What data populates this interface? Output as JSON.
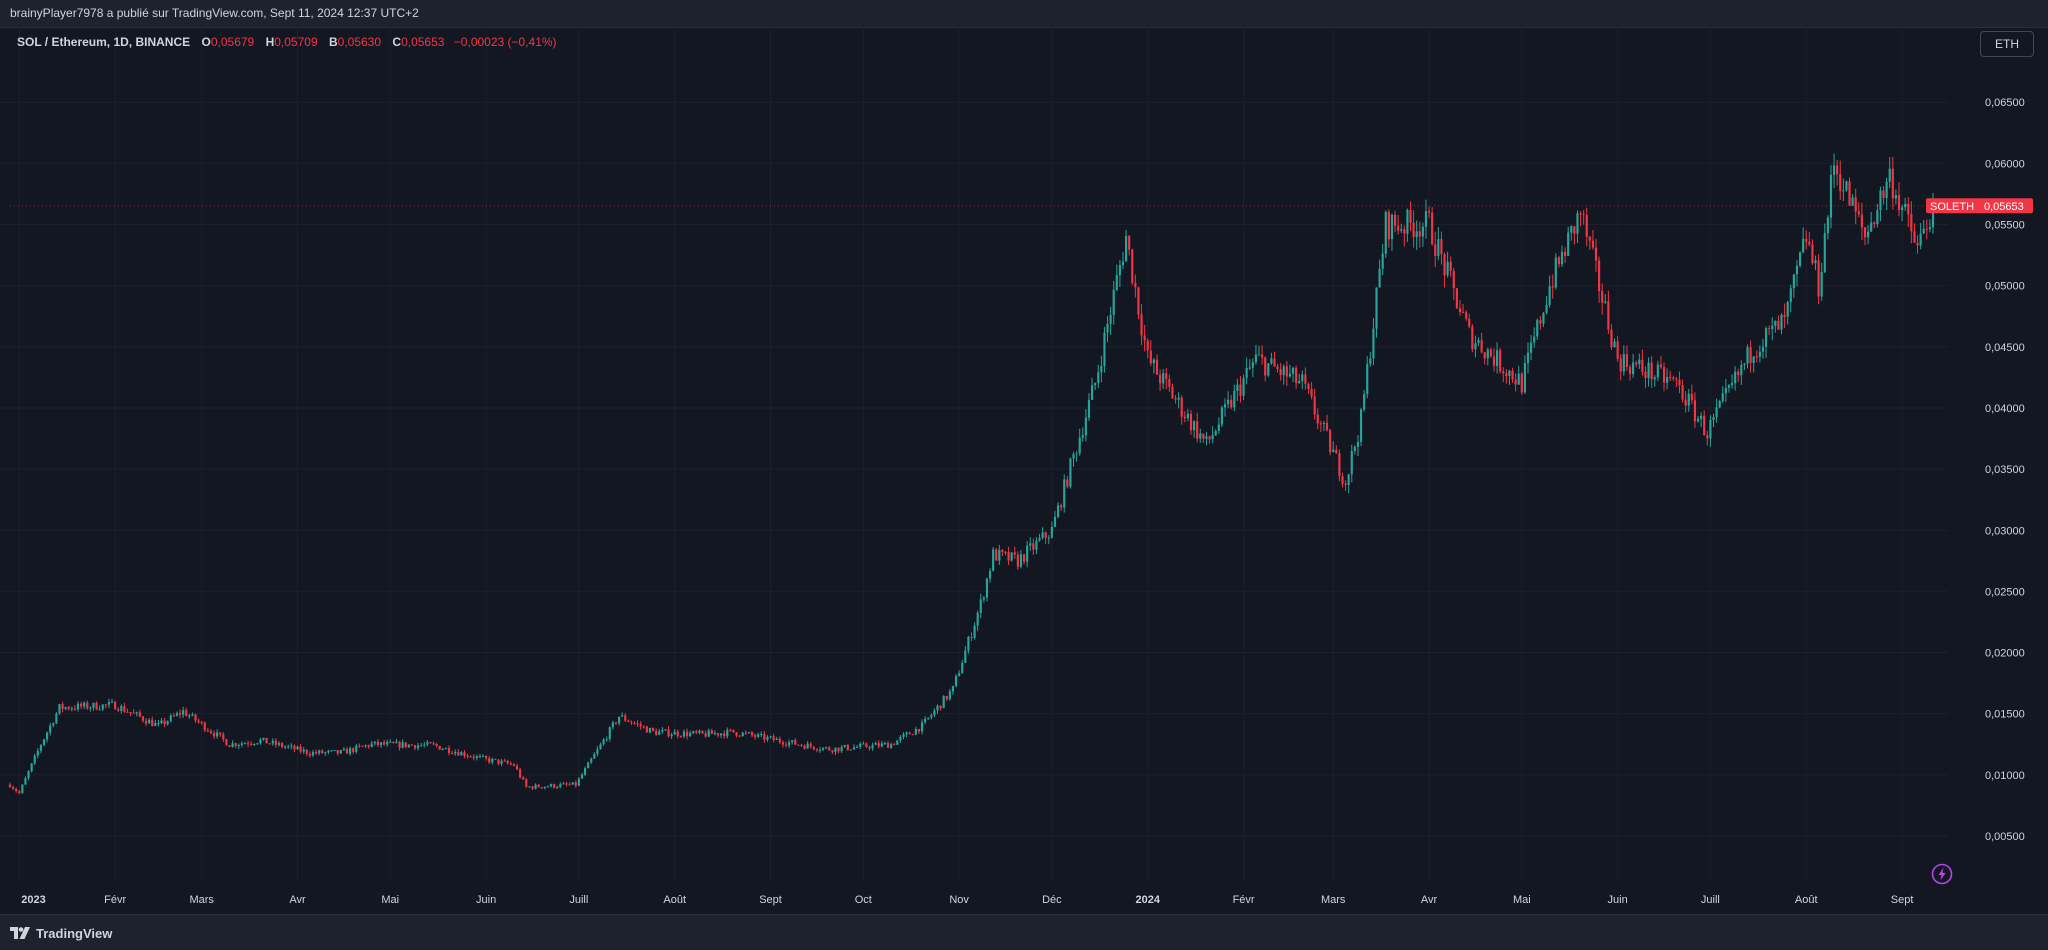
{
  "header": {
    "published_by": "brainyPlayer7978 a publié sur TradingView.com, Sept 11, 2024 12:37 UTC+2"
  },
  "legend": {
    "symbol": "SOL / Ethereum, 1D, BINANCE",
    "o_label": "O",
    "o_value": "0,05679",
    "h_label": "H",
    "h_value": "0,05709",
    "b_label": "B",
    "b_value": "0,05630",
    "c_label": "C",
    "c_value": "0,05653",
    "change": "−0,00023 (−0,41%)"
  },
  "currency_button": "ETH",
  "price_tag": {
    "symbol": "SOLETH",
    "value": "0,05653"
  },
  "footer": {
    "brand": "TradingView"
  },
  "colors": {
    "up": "#26a69a",
    "down": "#f23645",
    "background": "#131722",
    "grid": "#1c202b",
    "text": "#d1d4dc",
    "tag": "#f23645",
    "bolt": "#b845e6"
  },
  "icons": {
    "logo": "tradingview-logo-icon",
    "bolt": "lightning-bolt-icon"
  },
  "chart_data": {
    "type": "candlestick",
    "symbol": "SOLETH",
    "y_tick_labels": [
      "0,00500",
      "0,01000",
      "0,01500",
      "0,02000",
      "0,02500",
      "0,03000",
      "0,03500",
      "0,04000",
      "0,04500",
      "0,05000",
      "0,05500",
      "0,06000",
      "0,06500"
    ],
    "y_ticks": [
      0.005,
      0.01,
      0.015,
      0.02,
      0.025,
      0.03,
      0.035,
      0.04,
      0.045,
      0.05,
      0.055,
      0.06,
      0.065
    ],
    "x_tick_labels": [
      "2023",
      "Févr",
      "Mars",
      "Avr",
      "Mai",
      "Juin",
      "Juill",
      "Août",
      "Sept",
      "Oct",
      "Nov",
      "Déc",
      "2024",
      "Févr",
      "Mars",
      "Avr",
      "Mai",
      "Juin",
      "Juill",
      "Août",
      "Sept"
    ],
    "x_tick_dates": [
      "2023-01-01",
      "2023-02-01",
      "2023-03-01",
      "2023-04-01",
      "2023-05-01",
      "2023-06-01",
      "2023-07-01",
      "2023-08-01",
      "2023-09-01",
      "2023-10-01",
      "2023-11-01",
      "2023-12-01",
      "2024-01-01",
      "2024-02-01",
      "2024-03-01",
      "2024-04-01",
      "2024-05-01",
      "2024-06-01",
      "2024-07-01",
      "2024-08-01",
      "2024-09-01"
    ],
    "start_date": "2022-12-29",
    "end_date": "2024-09-11",
    "last_close": 0.05653,
    "approx_close_path": [
      {
        "date": "2022-12-29",
        "close": 0.0092
      },
      {
        "date": "2023-01-01",
        "close": 0.0085
      },
      {
        "date": "2023-01-08",
        "close": 0.0125
      },
      {
        "date": "2023-01-14",
        "close": 0.0155
      },
      {
        "date": "2023-02-01",
        "close": 0.0157
      },
      {
        "date": "2023-02-15",
        "close": 0.014
      },
      {
        "date": "2023-02-23",
        "close": 0.0152
      },
      {
        "date": "2023-03-10",
        "close": 0.0125
      },
      {
        "date": "2023-03-20",
        "close": 0.0128
      },
      {
        "date": "2023-04-05",
        "close": 0.0118
      },
      {
        "date": "2023-04-15",
        "close": 0.0118
      },
      {
        "date": "2023-04-25",
        "close": 0.0125
      },
      {
        "date": "2023-05-15",
        "close": 0.0124
      },
      {
        "date": "2023-05-31",
        "close": 0.0113
      },
      {
        "date": "2023-06-10",
        "close": 0.0108
      },
      {
        "date": "2023-06-14",
        "close": 0.009
      },
      {
        "date": "2023-06-30",
        "close": 0.0092
      },
      {
        "date": "2023-07-14",
        "close": 0.0148
      },
      {
        "date": "2023-07-25",
        "close": 0.0135
      },
      {
        "date": "2023-08-10",
        "close": 0.0133
      },
      {
        "date": "2023-08-20",
        "close": 0.0135
      },
      {
        "date": "2023-09-10",
        "close": 0.0125
      },
      {
        "date": "2023-09-20",
        "close": 0.0121
      },
      {
        "date": "2023-10-10",
        "close": 0.0125
      },
      {
        "date": "2023-10-20",
        "close": 0.014
      },
      {
        "date": "2023-10-30",
        "close": 0.017
      },
      {
        "date": "2023-11-08",
        "close": 0.024
      },
      {
        "date": "2023-11-12",
        "close": 0.028
      },
      {
        "date": "2023-11-20",
        "close": 0.0275
      },
      {
        "date": "2023-12-01",
        "close": 0.03
      },
      {
        "date": "2023-12-15",
        "close": 0.042
      },
      {
        "date": "2023-12-25",
        "close": 0.054
      },
      {
        "date": "2024-01-01",
        "close": 0.044
      },
      {
        "date": "2024-01-20",
        "close": 0.037
      },
      {
        "date": "2024-02-05",
        "close": 0.044
      },
      {
        "date": "2024-02-20",
        "close": 0.042
      },
      {
        "date": "2024-03-05",
        "close": 0.034
      },
      {
        "date": "2024-03-10",
        "close": 0.039
      },
      {
        "date": "2024-03-18",
        "close": 0.055
      },
      {
        "date": "2024-04-01",
        "close": 0.055
      },
      {
        "date": "2024-04-14",
        "close": 0.046
      },
      {
        "date": "2024-05-01",
        "close": 0.042
      },
      {
        "date": "2024-05-10",
        "close": 0.05
      },
      {
        "date": "2024-05-20",
        "close": 0.056
      },
      {
        "date": "2024-06-01",
        "close": 0.044
      },
      {
        "date": "2024-06-20",
        "close": 0.042
      },
      {
        "date": "2024-06-30",
        "close": 0.038
      },
      {
        "date": "2024-07-15",
        "close": 0.045
      },
      {
        "date": "2024-07-25",
        "close": 0.047
      },
      {
        "date": "2024-08-01",
        "close": 0.054
      },
      {
        "date": "2024-08-05",
        "close": 0.05
      },
      {
        "date": "2024-08-10",
        "close": 0.06
      },
      {
        "date": "2024-08-20",
        "close": 0.054
      },
      {
        "date": "2024-08-28",
        "close": 0.059
      },
      {
        "date": "2024-09-06",
        "close": 0.053
      },
      {
        "date": "2024-09-11",
        "close": 0.05653
      }
    ],
    "grid": true
  }
}
